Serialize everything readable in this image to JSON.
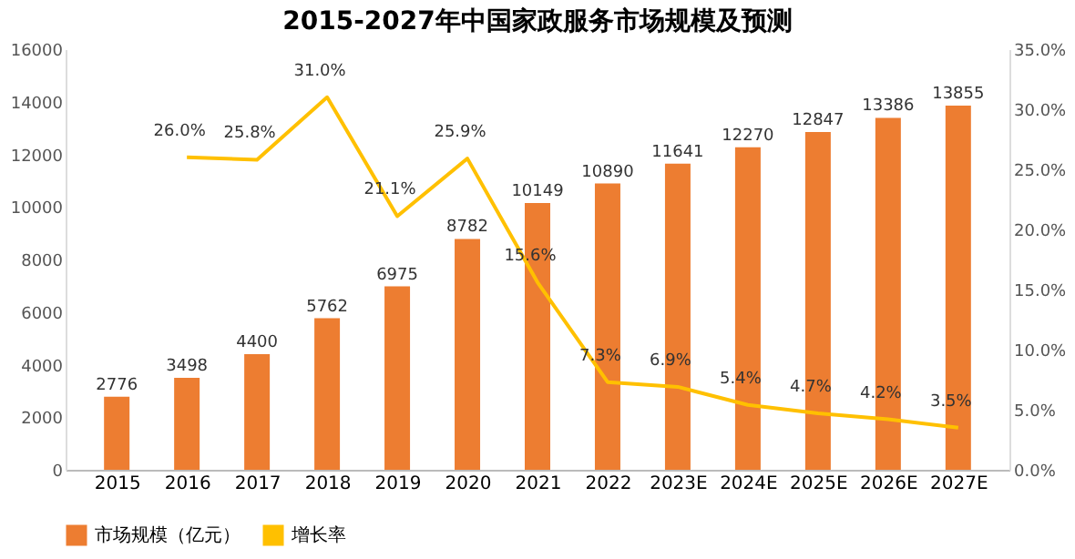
{
  "chart_data": {
    "type": "bar",
    "title": "2015-2027年中国家政服务市场规模及预测",
    "categories": [
      "2015",
      "2016",
      "2017",
      "2018",
      "2019",
      "2020",
      "2021",
      "2022",
      "2023E",
      "2024E",
      "2025E",
      "2026E",
      "2027E"
    ],
    "series": [
      {
        "name": "市场规模（亿元）",
        "color": "#ed7d31",
        "values": [
          2776,
          3498,
          4400,
          5762,
          6975,
          8782,
          10149,
          10890,
          11641,
          12270,
          12847,
          13386,
          13855
        ],
        "data_labels": true
      },
      {
        "name": "增长率",
        "type": "line",
        "axis": "y2",
        "color": "#ffc000",
        "values": [
          null,
          26.0,
          25.8,
          31.0,
          21.1,
          25.9,
          15.6,
          7.3,
          6.9,
          5.4,
          4.7,
          4.2,
          3.5
        ],
        "value_labels": [
          null,
          "26.0%",
          "25.8%",
          "31.0%",
          "21.1%",
          "25.9%",
          "15.6%",
          "7.3%",
          "6.9%",
          "5.4%",
          "4.7%",
          "4.2%",
          "3.5%"
        ],
        "line_style": "solid",
        "marker": "none"
      }
    ],
    "ylim": [
      0,
      16000
    ],
    "yticks": [
      0,
      2000,
      4000,
      6000,
      8000,
      10000,
      12000,
      14000,
      16000
    ],
    "y2lim": [
      0,
      35
    ],
    "y2ticks": [
      {
        "value": 0,
        "label": "0.0%"
      },
      {
        "value": 5,
        "label": "5.0%"
      },
      {
        "value": 10,
        "label": "10.0%"
      },
      {
        "value": 15,
        "label": "15.0%"
      },
      {
        "value": 20,
        "label": "20.0%"
      },
      {
        "value": 25,
        "label": "25.0%"
      },
      {
        "value": 30,
        "label": "30.0%"
      },
      {
        "value": 35,
        "label": "35.0%"
      }
    ],
    "grid": false,
    "legend": "bottom"
  }
}
